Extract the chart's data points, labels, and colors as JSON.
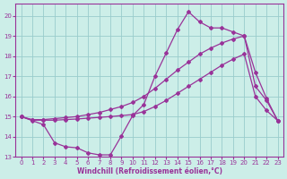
{
  "xlabel": "Windchill (Refroidissement éolien,°C)",
  "background_color": "#cceee8",
  "grid_color": "#99cccc",
  "line_color": "#993399",
  "xlim": [
    -0.5,
    23.5
  ],
  "ylim": [
    13.0,
    20.6
  ],
  "yticks": [
    13,
    14,
    15,
    16,
    17,
    18,
    19,
    20
  ],
  "xticks": [
    0,
    1,
    2,
    3,
    4,
    5,
    6,
    7,
    8,
    9,
    10,
    11,
    12,
    13,
    14,
    15,
    16,
    17,
    18,
    19,
    20,
    21,
    22,
    23
  ],
  "line1_x": [
    0,
    1,
    2,
    3,
    4,
    5,
    6,
    7,
    8,
    9,
    10,
    11,
    12,
    13,
    14,
    15,
    16,
    17,
    18,
    19,
    20,
    21,
    22,
    23
  ],
  "line1_y": [
    15.0,
    14.8,
    14.6,
    13.7,
    13.5,
    13.45,
    13.2,
    13.1,
    13.1,
    14.05,
    15.05,
    15.6,
    17.0,
    18.15,
    19.3,
    20.2,
    19.7,
    19.4,
    19.4,
    19.2,
    19.0,
    17.2,
    15.9,
    14.8
  ],
  "line2_x": [
    0,
    1,
    2,
    3,
    4,
    5,
    6,
    7,
    8,
    9,
    10,
    11,
    12,
    13,
    14,
    15,
    16,
    17,
    18,
    19,
    20,
    21,
    22,
    23
  ],
  "line2_y": [
    15.0,
    14.85,
    14.85,
    14.9,
    14.95,
    15.0,
    15.1,
    15.2,
    15.35,
    15.5,
    15.7,
    16.0,
    16.4,
    16.85,
    17.3,
    17.7,
    18.1,
    18.4,
    18.65,
    18.85,
    19.0,
    16.5,
    15.8,
    14.8
  ],
  "line3_x": [
    0,
    1,
    2,
    3,
    4,
    5,
    6,
    7,
    8,
    9,
    10,
    11,
    12,
    13,
    14,
    15,
    16,
    17,
    18,
    19,
    20,
    21,
    22,
    23
  ],
  "line3_y": [
    15.0,
    14.82,
    14.82,
    14.82,
    14.85,
    14.88,
    14.92,
    14.96,
    15.0,
    15.05,
    15.1,
    15.25,
    15.5,
    15.8,
    16.15,
    16.5,
    16.85,
    17.2,
    17.55,
    17.85,
    18.1,
    16.0,
    15.3,
    14.8
  ]
}
